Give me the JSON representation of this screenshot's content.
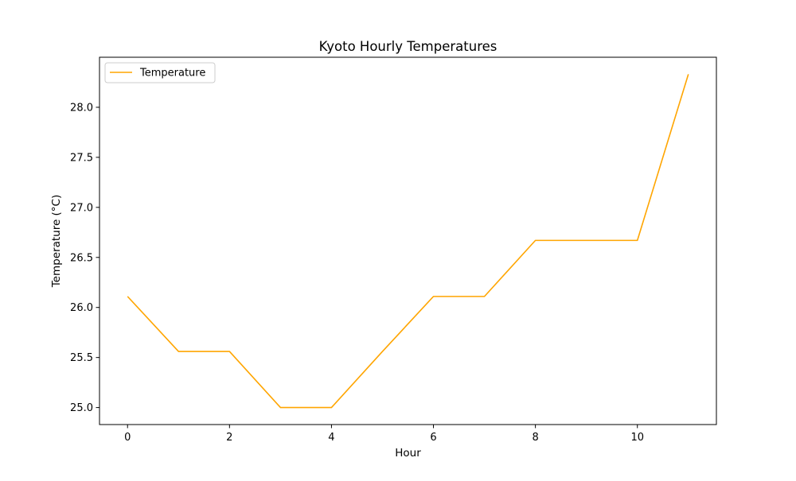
{
  "chart_data": {
    "type": "line",
    "title": "Kyoto Hourly Temperatures",
    "xlabel": "Hour",
    "ylabel": "Temperature (°C)",
    "x": [
      0,
      1,
      2,
      3,
      4,
      5,
      6,
      7,
      8,
      9,
      10,
      11
    ],
    "series": [
      {
        "name": "Temperature",
        "color": "#ffa500",
        "values": [
          26.11,
          25.56,
          25.56,
          25.0,
          25.0,
          25.56,
          26.11,
          26.11,
          26.67,
          26.67,
          26.67,
          28.33
        ]
      }
    ],
    "xlim": [
      -0.55,
      11.55
    ],
    "ylim": [
      24.83,
      28.5
    ],
    "xticks": [
      0,
      2,
      4,
      6,
      8,
      10
    ],
    "xtick_labels": [
      "0",
      "2",
      "4",
      "6",
      "8",
      "10"
    ],
    "yticks": [
      25.0,
      25.5,
      26.0,
      26.5,
      27.0,
      27.5,
      28.0
    ],
    "ytick_labels": [
      "25.0",
      "25.5",
      "26.0",
      "26.5",
      "27.0",
      "27.5",
      "28.0"
    ],
    "grid": false,
    "legend_position": "upper left"
  }
}
